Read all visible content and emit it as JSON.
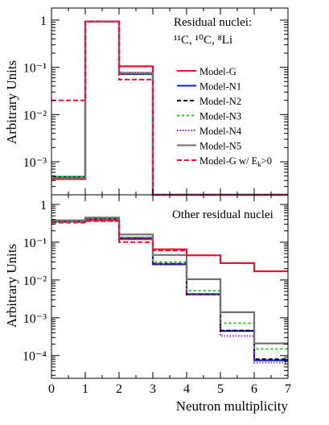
{
  "chart_data": [
    {
      "type": "step-histogram",
      "annotation": {
        "lines": [
          "Residual nuclei:",
          "¹¹C, ¹⁰C, ⁸Li"
        ],
        "color": "#8b1a1a"
      },
      "ylabel": "Arbitrary Units",
      "yscale": "log",
      "ylim": [
        0.0002,
        1.8
      ],
      "xlim": [
        0,
        7
      ],
      "y_ticks": [
        {
          "value": 1,
          "label": "1"
        },
        {
          "value": 0.1,
          "label": "10⁻¹"
        },
        {
          "value": 0.01,
          "label": "10⁻²"
        },
        {
          "value": 0.001,
          "label": "10⁻³"
        }
      ],
      "bin_edges": [
        0,
        1,
        2,
        3,
        4,
        5,
        6,
        7
      ],
      "series": [
        {
          "name": "Model-G",
          "color": "#ee1133",
          "dash": "solid",
          "width": 2.2,
          "values": [
            0.00043,
            0.93,
            0.105,
            0.0002,
            0.0002,
            0.0002,
            0.0002
          ]
        },
        {
          "name": "Model-N1",
          "color": "#1020c8",
          "dash": "solid",
          "width": 2.2,
          "values": [
            0.00048,
            0.93,
            0.072,
            0.0002,
            0.0002,
            0.0002,
            0.0002
          ]
        },
        {
          "name": "Model-N2",
          "color": "#000000",
          "dash": "5,3",
          "width": 2,
          "values": [
            0.00047,
            0.93,
            0.073,
            0.0002,
            0.0002,
            0.0002,
            0.0002
          ]
        },
        {
          "name": "Model-N3",
          "color": "#22cc22",
          "dash": "3,3",
          "width": 2,
          "values": [
            0.00049,
            0.93,
            0.074,
            0.0002,
            0.0002,
            0.0002,
            0.0002
          ]
        },
        {
          "name": "Model-N4",
          "color": "#aa22cc",
          "dash": "1.5,2",
          "width": 2,
          "values": [
            0.00046,
            0.93,
            0.078,
            0.0002,
            0.0002,
            0.0002,
            0.0002
          ]
        },
        {
          "name": "Model-N5",
          "color": "#707070",
          "dash": "solid",
          "width": 2.2,
          "values": [
            0.00045,
            0.93,
            0.075,
            0.0002,
            0.0002,
            0.0002,
            0.0002
          ]
        },
        {
          "name": "Model-G w/ E_k>0",
          "color": "#ee1133",
          "dash": "6,3",
          "width": 2,
          "values": [
            0.02,
            0.93,
            0.055,
            0.0002,
            0.0002,
            0.0002,
            0.0002
          ]
        }
      ],
      "legend": {
        "placement": "right",
        "entries": [
          {
            "label": "Model-G",
            "color": "#ee1133",
            "dash": "solid"
          },
          {
            "label": "Model-N1",
            "color": "#1020c8",
            "dash": "solid"
          },
          {
            "label": "Model-N2",
            "color": "#000000",
            "dash": "5,3"
          },
          {
            "label": "Model-N3",
            "color": "#22cc22",
            "dash": "3,3"
          },
          {
            "label": "Model-N4",
            "color": "#aa22cc",
            "dash": "1.5,2"
          },
          {
            "label": "Model-N5",
            "color": "#707070",
            "dash": "solid"
          },
          {
            "label": "Model-G w/ E",
            "sub": "k",
            "suffix": ">0",
            "color": "#ee1133",
            "dash": "6,3"
          }
        ]
      }
    },
    {
      "type": "step-histogram",
      "annotation": {
        "lines": [
          "Other residual nuclei"
        ],
        "color": "#8b1a1a"
      },
      "ylabel": "Arbitrary Units",
      "xlabel": "Neutron multiplicity",
      "yscale": "log",
      "ylim": [
        2.5e-05,
        1.8
      ],
      "xlim": [
        0,
        7
      ],
      "x_ticks": [
        "0",
        "1",
        "2",
        "3",
        "4",
        "5",
        "6",
        "7"
      ],
      "y_ticks": [
        {
          "value": 1,
          "label": "1"
        },
        {
          "value": 0.1,
          "label": "10⁻¹"
        },
        {
          "value": 0.01,
          "label": "10⁻²"
        },
        {
          "value": 0.001,
          "label": "10⁻³"
        },
        {
          "value": 0.0001,
          "label": "10⁻⁴"
        }
      ],
      "bin_edges": [
        0,
        1,
        2,
        3,
        4,
        5,
        6,
        7
      ],
      "series": [
        {
          "name": "Model-G",
          "color": "#ee1133",
          "dash": "solid",
          "width": 2.2,
          "values": [
            0.36,
            0.38,
            0.12,
            0.065,
            0.045,
            0.028,
            0.017
          ]
        },
        {
          "name": "Model-N1",
          "color": "#1020c8",
          "dash": "solid",
          "width": 2.2,
          "values": [
            0.35,
            0.42,
            0.13,
            0.026,
            0.0042,
            0.00045,
            7.5e-05
          ]
        },
        {
          "name": "Model-N2",
          "color": "#000000",
          "dash": "5,3",
          "width": 2,
          "values": [
            0.35,
            0.42,
            0.13,
            0.027,
            0.0042,
            0.00046,
            8e-05
          ]
        },
        {
          "name": "Model-N3",
          "color": "#22cc22",
          "dash": "3,3",
          "width": 2,
          "values": [
            0.35,
            0.42,
            0.135,
            0.03,
            0.0052,
            0.00072,
            0.00015
          ]
        },
        {
          "name": "Model-N4",
          "color": "#aa22cc",
          "dash": "1.5,2",
          "width": 2,
          "values": [
            0.35,
            0.42,
            0.13,
            0.027,
            0.004,
            0.00033,
            6.5e-05
          ]
        },
        {
          "name": "Model-N5",
          "color": "#707070",
          "dash": "solid",
          "width": 2.2,
          "values": [
            0.38,
            0.45,
            0.16,
            0.046,
            0.0105,
            0.0014,
            0.00021
          ]
        },
        {
          "name": "Model-G w/ E_k>0",
          "color": "#ee1133",
          "dash": "6,3",
          "width": 2,
          "values": [
            0.33,
            0.36,
            0.1,
            0.06,
            0.045,
            0.028,
            0.017
          ]
        }
      ]
    }
  ]
}
